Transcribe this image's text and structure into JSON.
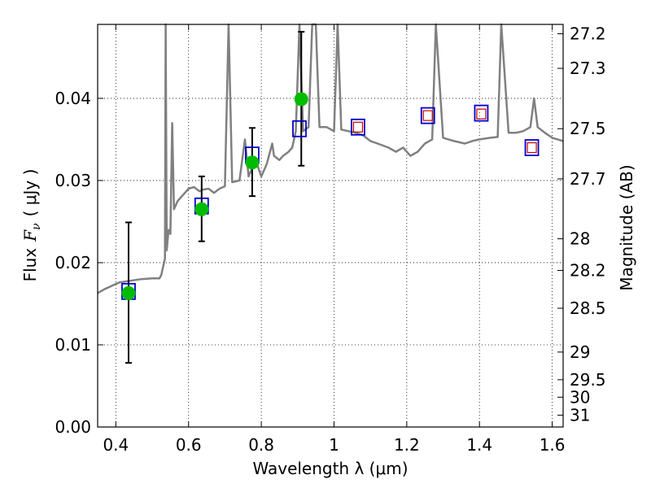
{
  "chart_data": {
    "type": "scatter",
    "xlabel": "Wavelength  λ (μm)",
    "ylabel_prefix": "Flux",
    "ylabel_symbol": "F",
    "ylabel_symbol_sub": "ν",
    "ylabel_unit": "( μJy )",
    "y2label": "Magnitude (AB)",
    "xlim": [
      0.35,
      1.63
    ],
    "ylim": [
      0.0,
      0.049
    ],
    "grid": true,
    "x_ticks": [
      0.4,
      0.6,
      0.8,
      1.0,
      1.2,
      1.4,
      1.6
    ],
    "x_tick_labels": [
      "0.4",
      "0.6",
      "0.8",
      "1",
      "1.2",
      "1.4",
      "1.6"
    ],
    "y_ticks": [
      0.0,
      0.01,
      0.02,
      0.03,
      0.04
    ],
    "y_tick_labels": [
      "0.00",
      "0.01",
      "0.02",
      "0.03",
      "0.04"
    ],
    "mag_ticks": [
      27.2,
      27.3,
      27.5,
      27.7,
      28,
      28.2,
      28.5,
      29,
      29.5,
      30,
      31
    ],
    "mag_tick_labels": [
      "27.2",
      "27.3",
      "27.5",
      "27.7",
      "28",
      "28.2",
      "28.5",
      "29",
      "29.5",
      "30",
      "31"
    ],
    "series": [
      {
        "marker": "filled-circle",
        "color": "#00bb00",
        "points": [
          {
            "x": 0.435,
            "y": 0.0163,
            "err_lo": 0.0085,
            "err_hi": 0.0086
          },
          {
            "x": 0.636,
            "y": 0.0265,
            "err_lo": 0.0039,
            "err_hi": 0.004
          },
          {
            "x": 0.775,
            "y": 0.0322,
            "err_lo": 0.0041,
            "err_hi": 0.0042
          },
          {
            "x": 0.91,
            "y": 0.0399,
            "err_lo": 0.0081,
            "err_hi": 0.0082
          }
        ]
      },
      {
        "marker": "open-square",
        "color": "#0000cc",
        "points": [
          {
            "x": 0.435,
            "y": 0.0165
          },
          {
            "x": 0.636,
            "y": 0.0269
          },
          {
            "x": 0.775,
            "y": 0.0331
          },
          {
            "x": 0.905,
            "y": 0.0363
          },
          {
            "x": 1.066,
            "y": 0.0365
          },
          {
            "x": 1.258,
            "y": 0.0379
          },
          {
            "x": 1.405,
            "y": 0.0382
          },
          {
            "x": 1.544,
            "y": 0.034
          }
        ]
      },
      {
        "marker": "small-open-square",
        "color": "#cc0000",
        "points": [
          {
            "x": 1.066,
            "y": 0.0365
          },
          {
            "x": 1.258,
            "y": 0.0379
          },
          {
            "x": 1.405,
            "y": 0.0381
          },
          {
            "x": 1.544,
            "y": 0.034
          }
        ]
      }
    ],
    "spectrum": {
      "color": "#808080",
      "points": [
        [
          0.35,
          0.0163
        ],
        [
          0.37,
          0.0168
        ],
        [
          0.39,
          0.0172
        ],
        [
          0.41,
          0.0176
        ],
        [
          0.44,
          0.0178
        ],
        [
          0.47,
          0.018
        ],
        [
          0.5,
          0.0181
        ],
        [
          0.52,
          0.0181
        ],
        [
          0.525,
          0.0185
        ],
        [
          0.535,
          0.0205
        ],
        [
          0.537,
          0.049
        ],
        [
          0.54,
          0.0215
        ],
        [
          0.545,
          0.024
        ],
        [
          0.55,
          0.0235
        ],
        [
          0.555,
          0.037
        ],
        [
          0.56,
          0.0265
        ],
        [
          0.57,
          0.0275
        ],
        [
          0.58,
          0.028
        ],
        [
          0.59,
          0.0285
        ],
        [
          0.6,
          0.029
        ],
        [
          0.615,
          0.0292
        ],
        [
          0.63,
          0.0287
        ],
        [
          0.64,
          0.0289
        ],
        [
          0.655,
          0.029
        ],
        [
          0.67,
          0.0285
        ],
        [
          0.685,
          0.029
        ],
        [
          0.7,
          0.0293
        ],
        [
          0.71,
          0.049
        ],
        [
          0.72,
          0.0298
        ],
        [
          0.74,
          0.03
        ],
        [
          0.755,
          0.035
        ],
        [
          0.765,
          0.0305
        ],
        [
          0.78,
          0.032
        ],
        [
          0.79,
          0.0318
        ],
        [
          0.8,
          0.0305
        ],
        [
          0.815,
          0.032
        ],
        [
          0.83,
          0.0345
        ],
        [
          0.835,
          0.033
        ],
        [
          0.85,
          0.0325
        ],
        [
          0.86,
          0.033
        ],
        [
          0.875,
          0.0335
        ],
        [
          0.885,
          0.034
        ],
        [
          0.895,
          0.036
        ],
        [
          0.905,
          0.049
        ],
        [
          0.915,
          0.036
        ],
        [
          0.93,
          0.0365
        ],
        [
          0.94,
          0.049
        ],
        [
          0.95,
          0.049
        ],
        [
          0.96,
          0.0365
        ],
        [
          0.98,
          0.0365
        ],
        [
          1.0,
          0.036
        ],
        [
          1.01,
          0.049
        ],
        [
          1.02,
          0.0362
        ],
        [
          1.04,
          0.036
        ],
        [
          1.06,
          0.0358
        ],
        [
          1.08,
          0.0355
        ],
        [
          1.1,
          0.0348
        ],
        [
          1.12,
          0.0345
        ],
        [
          1.15,
          0.034
        ],
        [
          1.17,
          0.0335
        ],
        [
          1.19,
          0.034
        ],
        [
          1.21,
          0.033
        ],
        [
          1.23,
          0.0335
        ],
        [
          1.25,
          0.0345
        ],
        [
          1.27,
          0.035
        ],
        [
          1.28,
          0.049
        ],
        [
          1.3,
          0.0352
        ],
        [
          1.33,
          0.0348
        ],
        [
          1.36,
          0.0345
        ],
        [
          1.38,
          0.0348
        ],
        [
          1.4,
          0.035
        ],
        [
          1.43,
          0.0352
        ],
        [
          1.45,
          0.0353
        ],
        [
          1.46,
          0.049
        ],
        [
          1.48,
          0.0358
        ],
        [
          1.5,
          0.0358
        ],
        [
          1.52,
          0.036
        ],
        [
          1.54,
          0.0365
        ],
        [
          1.55,
          0.04
        ],
        [
          1.56,
          0.0365
        ],
        [
          1.58,
          0.0358
        ],
        [
          1.6,
          0.0352
        ],
        [
          1.63,
          0.0348
        ]
      ]
    }
  }
}
